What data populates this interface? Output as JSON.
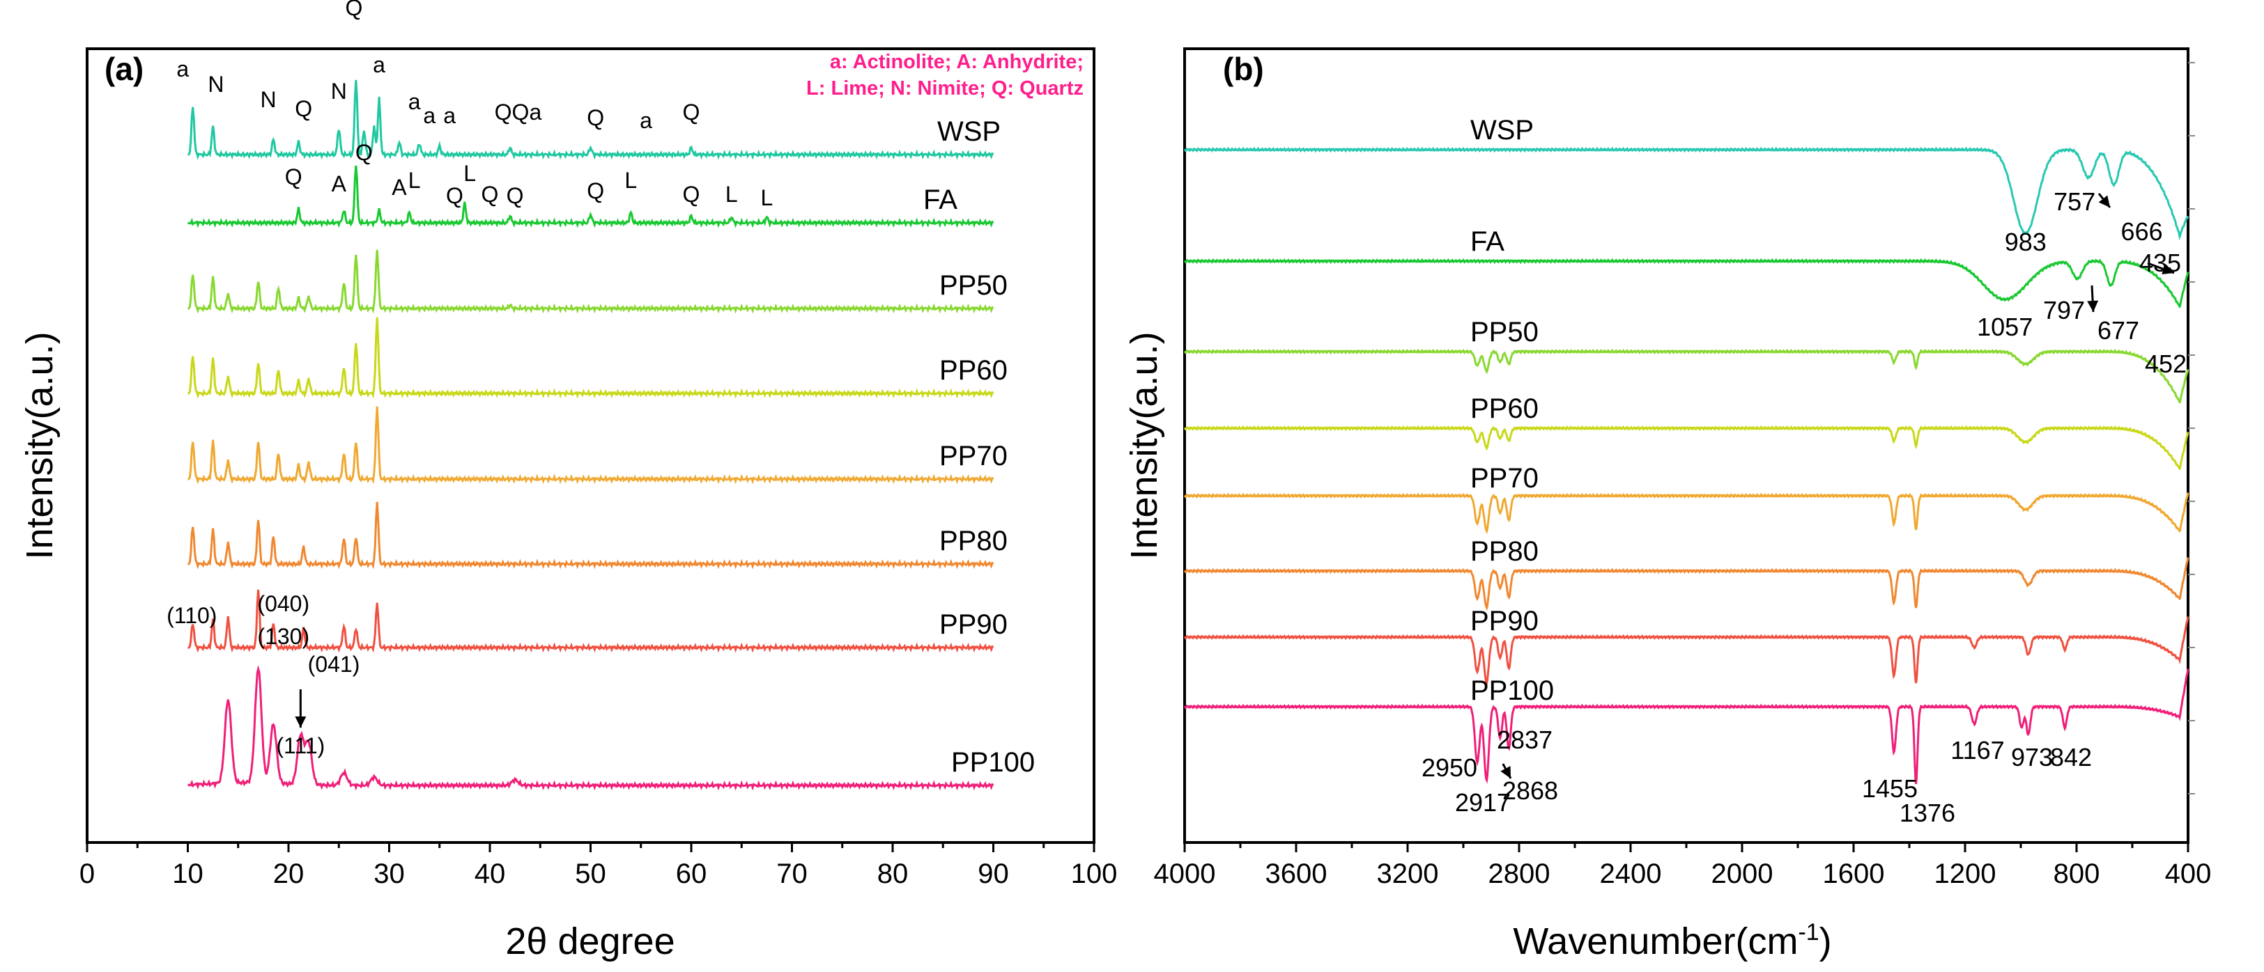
{
  "chart_data": [
    {
      "type": "line",
      "panel": "(a)",
      "xlabel": "2θ degree",
      "ylabel": "Intensity(a.u.)",
      "xlim": [
        0,
        100
      ],
      "xticks": [
        "0",
        "10",
        "20",
        "30",
        "40",
        "50",
        "60",
        "70",
        "80",
        "90",
        "100"
      ],
      "legend": [
        "a: Actinolite; A: Anhydrite;",
        "L: Lime; N: Nimite; Q: Quartz"
      ],
      "series": [
        {
          "name": "WSP",
          "color": "#1ec8a0",
          "peaks": [
            [
              10.5,
              70
            ],
            [
              12.5,
              40
            ],
            [
              18.5,
              22
            ],
            [
              21,
              18
            ],
            [
              25,
              38
            ],
            [
              26.7,
              110
            ],
            [
              27.5,
              35
            ],
            [
              28.5,
              40
            ],
            [
              29,
              80
            ],
            [
              31,
              18
            ],
            [
              33,
              16
            ],
            [
              35,
              12
            ],
            [
              42,
              10
            ],
            [
              50,
              10
            ],
            [
              60,
              10
            ]
          ],
          "letters": [
            {
              "t": "a",
              "x": 9.5,
              "lift": 112
            },
            {
              "t": "N",
              "x": 12.8,
              "lift": 90
            },
            {
              "t": "N",
              "x": 18,
              "lift": 68
            },
            {
              "t": "Q",
              "x": 21.5,
              "lift": 55
            },
            {
              "t": "N",
              "x": 25,
              "lift": 80
            },
            {
              "t": "Q",
              "x": 26.5,
              "lift": 200
            },
            {
              "t": "a",
              "x": 29,
              "lift": 118
            },
            {
              "t": "a",
              "x": 32.5,
              "lift": 65
            },
            {
              "t": "a",
              "x": 34,
              "lift": 45
            },
            {
              "t": "a",
              "x": 36,
              "lift": 45
            },
            {
              "t": "QQa",
              "x": 42.8,
              "lift": 50
            },
            {
              "t": "Q",
              "x": 50.5,
              "lift": 42
            },
            {
              "t": "a",
              "x": 55.5,
              "lift": 38
            },
            {
              "t": "Q",
              "x": 60,
              "lift": 50
            }
          ]
        },
        {
          "name": "FA",
          "color": "#18c830",
          "peaks": [
            [
              21,
              20
            ],
            [
              25.5,
              18
            ],
            [
              26.7,
              85
            ],
            [
              29,
              18
            ],
            [
              32,
              15
            ],
            [
              37.5,
              28
            ],
            [
              42,
              10
            ],
            [
              50,
              12
            ],
            [
              54,
              15
            ],
            [
              60,
              10
            ],
            [
              64,
              8
            ],
            [
              67.5,
              8
            ]
          ],
          "letters": [
            {
              "t": "Q",
              "x": 20.5,
              "lift": 55
            },
            {
              "t": "A",
              "x": 25,
              "lift": 45
            },
            {
              "t": "Q",
              "x": 27.5,
              "lift": 90
            },
            {
              "t": "A",
              "x": 31,
              "lift": 40
            },
            {
              "t": "L",
              "x": 32.5,
              "lift": 50
            },
            {
              "t": "Q",
              "x": 36.5,
              "lift": 28
            },
            {
              "t": "L",
              "x": 38,
              "lift": 60
            },
            {
              "t": "Q",
              "x": 40,
              "lift": 30
            },
            {
              "t": "Q",
              "x": 42.5,
              "lift": 28
            },
            {
              "t": "Q",
              "x": 50.5,
              "lift": 35
            },
            {
              "t": "L",
              "x": 54,
              "lift": 50
            },
            {
              "t": "Q",
              "x": 60,
              "lift": 30
            },
            {
              "t": "L",
              "x": 64,
              "lift": 30
            },
            {
              "t": "L",
              "x": 67.5,
              "lift": 25
            }
          ]
        },
        {
          "name": "PP50",
          "color": "#88d830",
          "peaks": [
            [
              10.5,
              50
            ],
            [
              12.5,
              45
            ],
            [
              14,
              22
            ],
            [
              17,
              40
            ],
            [
              19,
              30
            ],
            [
              21,
              15
            ],
            [
              22,
              18
            ],
            [
              25.5,
              38
            ],
            [
              26.7,
              80
            ],
            [
              28.8,
              85
            ],
            [
              42,
              5
            ]
          ]
        },
        {
          "name": "PP60",
          "color": "#c8d818",
          "peaks": [
            [
              10.5,
              55
            ],
            [
              12.5,
              50
            ],
            [
              14,
              25
            ],
            [
              17,
              45
            ],
            [
              19,
              35
            ],
            [
              21,
              18
            ],
            [
              22,
              22
            ],
            [
              25.5,
              38
            ],
            [
              26.7,
              75
            ],
            [
              28.8,
              110
            ]
          ]
        },
        {
          "name": "PP70",
          "color": "#f0a830",
          "peaks": [
            [
              10.5,
              55
            ],
            [
              12.5,
              55
            ],
            [
              14,
              28
            ],
            [
              17,
              55
            ],
            [
              19,
              38
            ],
            [
              21,
              20
            ],
            [
              22,
              25
            ],
            [
              25.5,
              38
            ],
            [
              26.7,
              55
            ],
            [
              28.8,
              105
            ]
          ]
        },
        {
          "name": "PP80",
          "color": "#f08830",
          "peaks": [
            [
              10.5,
              55
            ],
            [
              12.5,
              50
            ],
            [
              14,
              32
            ],
            [
              17,
              65
            ],
            [
              18.5,
              40
            ],
            [
              21.5,
              25
            ],
            [
              25.5,
              38
            ],
            [
              26.7,
              40
            ],
            [
              28.8,
              90
            ]
          ]
        },
        {
          "name": "PP90",
          "color": "#f05040",
          "peaks": [
            [
              10.5,
              35
            ],
            [
              12.5,
              40
            ],
            [
              14,
              45
            ],
            [
              17,
              85
            ],
            [
              18.5,
              35
            ],
            [
              21.5,
              28
            ],
            [
              25.5,
              32
            ],
            [
              26.7,
              28
            ],
            [
              28.8,
              65
            ]
          ]
        },
        {
          "name": "PP100",
          "color": "#f01e78",
          "peaks": [
            [
              14,
              120
            ],
            [
              17,
              165
            ],
            [
              18.5,
              85
            ],
            [
              21.2,
              70
            ],
            [
              22,
              60
            ],
            [
              25.5,
              18
            ],
            [
              28.5,
              12
            ],
            [
              42.5,
              8
            ]
          ],
          "millers": [
            "(110)",
            "(040)",
            "(130)",
            "(041)",
            "(111)"
          ]
        }
      ]
    },
    {
      "type": "line",
      "panel": "(b)",
      "xlabel": "Wavenumber(cm-1)",
      "ylabel": "Intensity(a.u.)",
      "xlim": [
        4000,
        400
      ],
      "xticks": [
        "4000",
        "3600",
        "3200",
        "2800",
        "2400",
        "2000",
        "1600",
        "1200",
        "800",
        "400"
      ],
      "series": [
        {
          "name": "WSP",
          "color": "#28c8b0",
          "bands": [
            [
              983,
              120,
              60
            ],
            [
              757,
              40,
              30
            ],
            [
              666,
              50,
              25
            ]
          ],
          "drop": 170,
          "labels": [
            "983",
            "757",
            "666"
          ]
        },
        {
          "name": "FA",
          "color": "#18c830",
          "bands": [
            [
              1057,
              55,
              110
            ],
            [
              797,
              25,
              25
            ],
            [
              677,
              35,
              20
            ]
          ],
          "drop": 90,
          "labels": [
            "435",
            "1057",
            "797",
            "677",
            "452"
          ]
        },
        {
          "name": "PP50",
          "color": "#88d830",
          "bands": [
            [
              2950,
              20,
              12
            ],
            [
              2917,
              28,
              12
            ],
            [
              2868,
              15,
              10
            ],
            [
              2837,
              18,
              10
            ],
            [
              1455,
              15,
              10
            ],
            [
              1376,
              22,
              8
            ],
            [
              983,
              18,
              40
            ]
          ],
          "drop": 100
        },
        {
          "name": "PP60",
          "color": "#c8d818",
          "bands": [
            [
              2950,
              20,
              12
            ],
            [
              2917,
              28,
              12
            ],
            [
              2868,
              15,
              10
            ],
            [
              2837,
              18,
              10
            ],
            [
              1455,
              18,
              10
            ],
            [
              1376,
              25,
              8
            ],
            [
              983,
              20,
              40
            ]
          ],
          "drop": 80
        },
        {
          "name": "PP70",
          "color": "#f0a830",
          "bands": [
            [
              2950,
              40,
              12
            ],
            [
              2917,
              50,
              12
            ],
            [
              2868,
              25,
              10
            ],
            [
              2837,
              35,
              10
            ],
            [
              1455,
              40,
              10
            ],
            [
              1376,
              48,
              8
            ],
            [
              983,
              20,
              35
            ]
          ],
          "drop": 70
        },
        {
          "name": "PP80",
          "color": "#f08830",
          "bands": [
            [
              2950,
              40,
              12
            ],
            [
              2917,
              52,
              12
            ],
            [
              2868,
              25,
              10
            ],
            [
              2837,
              38,
              10
            ],
            [
              1455,
              45,
              10
            ],
            [
              1376,
              52,
              8
            ],
            [
              973,
              20,
              20
            ]
          ],
          "drop": 55
        },
        {
          "name": "PP90",
          "color": "#f05040",
          "bands": [
            [
              2950,
              50,
              12
            ],
            [
              2917,
              65,
              12
            ],
            [
              2868,
              30,
              10
            ],
            [
              2837,
              45,
              10
            ],
            [
              1455,
              55,
              10
            ],
            [
              1376,
              65,
              8
            ],
            [
              1167,
              15,
              12
            ],
            [
              973,
              25,
              12
            ],
            [
              842,
              18,
              10
            ]
          ],
          "drop": 45
        },
        {
          "name": "PP100",
          "color": "#f01e78",
          "bands": [
            [
              2950,
              80,
              12
            ],
            [
              2917,
              105,
              12
            ],
            [
              2868,
              45,
              10
            ],
            [
              2837,
              60,
              10
            ],
            [
              1455,
              65,
              10
            ],
            [
              1376,
              110,
              8
            ],
            [
              1167,
              25,
              12
            ],
            [
              997,
              30,
              10
            ],
            [
              973,
              40,
              10
            ],
            [
              842,
              30,
              10
            ]
          ],
          "drop": 20,
          "labels": [
            "2950",
            "2837",
            "2917",
            "2868",
            "1455",
            "1376",
            "1167",
            "973",
            "842"
          ]
        }
      ]
    }
  ]
}
